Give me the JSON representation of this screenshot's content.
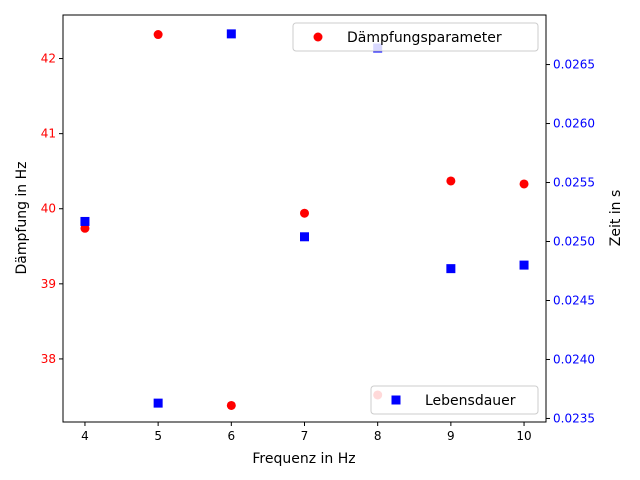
{
  "chart_data": {
    "type": "scatter",
    "xlabel": "Frequenz in Hz",
    "ylabel_left": "Dämpfung in Hz",
    "ylabel_right": "Zeit in s",
    "x_ticks": [
      4,
      5,
      6,
      7,
      8,
      9,
      10
    ],
    "x_range": [
      3.7,
      10.3
    ],
    "y_left_ticks": [
      38,
      39,
      40,
      41,
      42
    ],
    "y_left_range": [
      37.16,
      42.58
    ],
    "y_right_ticks": [
      "0.0235",
      "0.0240",
      "0.0245",
      "0.0250",
      "0.0255",
      "0.0260",
      "0.0265"
    ],
    "y_right_range": [
      0.02347,
      0.02692
    ],
    "grid": false,
    "series": [
      {
        "name": "Dämpfungsparameter",
        "axis": "left",
        "marker": "circle",
        "color": "#ff0000",
        "legend_position": "top-right",
        "x": [
          4,
          5,
          6,
          7,
          8,
          9,
          10
        ],
        "y": [
          39.74,
          42.32,
          37.38,
          39.94,
          37.52,
          40.37,
          40.33
        ]
      },
      {
        "name": "Lebensdauer",
        "axis": "right",
        "marker": "square",
        "color": "#0000ff",
        "legend_position": "bottom-right",
        "x": [
          4,
          5,
          6,
          7,
          8,
          9,
          10
        ],
        "y": [
          0.02517,
          0.02363,
          0.02676,
          0.02504,
          0.02664,
          0.02477,
          0.0248
        ]
      }
    ]
  }
}
